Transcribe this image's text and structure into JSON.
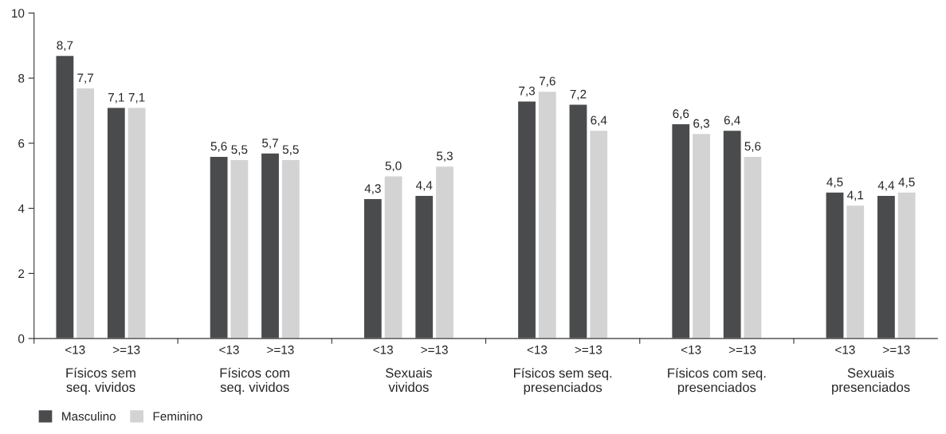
{
  "chart_data": {
    "type": "bar",
    "categories": [
      "<13",
      ">=13",
      "<13",
      ">=13",
      "<13",
      ">=13",
      "<13",
      ">=13",
      "<13",
      ">=13",
      "<13",
      ">=13"
    ],
    "annotations": [
      "Físicos sem\nseq. vividos",
      "Físicos com\nseq. vividos",
      "Sexuais\nvividos",
      "Físicos sem seq.\npresenciados",
      "Físicos com seq.\npresenciados",
      "Sexuais\npresenciados"
    ],
    "series": [
      {
        "name": "Masculino",
        "color": "#4a4b4d",
        "values": [
          8.7,
          7.1,
          5.6,
          5.7,
          4.3,
          4.4,
          7.3,
          7.2,
          6.6,
          6.4,
          4.5,
          4.4
        ],
        "value_labels": [
          "8,7",
          "7,1",
          "5,6",
          "5,7",
          "4,3",
          "4,4",
          "7,3",
          "7,2",
          "6,6",
          "6,4",
          "4,5",
          "4,4"
        ]
      },
      {
        "name": "Feminino",
        "color": "#d3d3d3",
        "values": [
          7.7,
          7.1,
          5.5,
          5.5,
          5.0,
          5.3,
          7.6,
          6.4,
          6.3,
          5.6,
          4.1,
          4.5
        ],
        "value_labels": [
          "7,7",
          "7,1",
          "5,5",
          "5,5",
          "5,0",
          "5,3",
          "7,6",
          "6,4",
          "6,3",
          "5,6",
          "4,1",
          "4,5"
        ]
      }
    ],
    "ylim": [
      0,
      10
    ],
    "yticks": [
      0,
      2,
      4,
      6,
      8,
      10
    ],
    "grid": false,
    "legend": "bottom left"
  }
}
